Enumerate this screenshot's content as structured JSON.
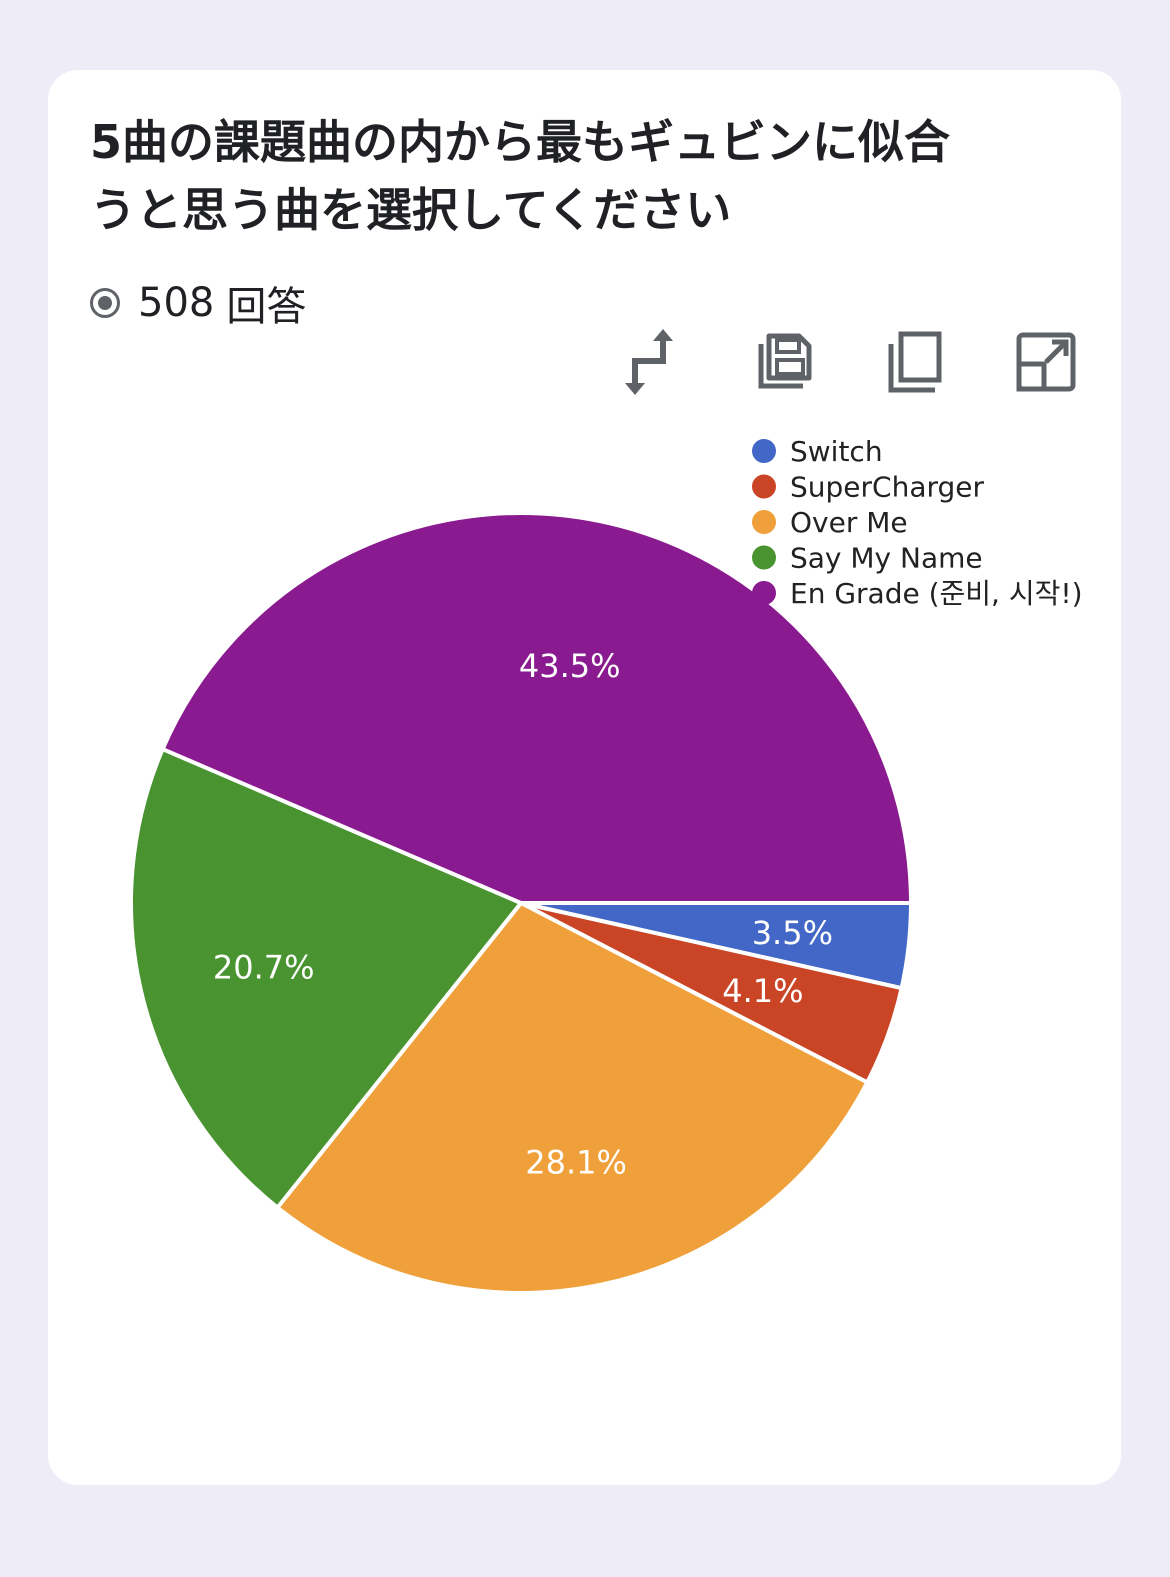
{
  "question": {
    "title": "5曲の課題曲の内から最も ギュビンに似合うと思う曲を選択してください",
    "title_line1": "5曲の課題曲の内から最もギュビンに似合",
    "title_line2": "うと思う曲を選択してください",
    "response_count": "508",
    "response_label": "回答"
  },
  "toolbar": [
    {
      "icon": "swap-icon"
    },
    {
      "icon": "save-icon"
    },
    {
      "icon": "copy-icon"
    },
    {
      "icon": "open-in-new-icon"
    }
  ],
  "chart_data": {
    "type": "pie",
    "legend_position": "top-right",
    "slices": [
      {
        "label": "Switch",
        "value": 3.5,
        "display": "3.5%",
        "color": "#4267c6"
      },
      {
        "label": "SuperCharger",
        "value": 4.1,
        "display": "4.1%",
        "color": "#c94526"
      },
      {
        "label": "Over Me",
        "value": 28.1,
        "display": "28.1%",
        "color": "#f0a03a"
      },
      {
        "label": "Say My Name",
        "value": 20.7,
        "display": "20.7%",
        "color": "#499331"
      },
      {
        "label": "En Grade (준비, 시작!)",
        "value": 43.5,
        "display": "43.5%",
        "color": "#8a1a90"
      }
    ]
  }
}
